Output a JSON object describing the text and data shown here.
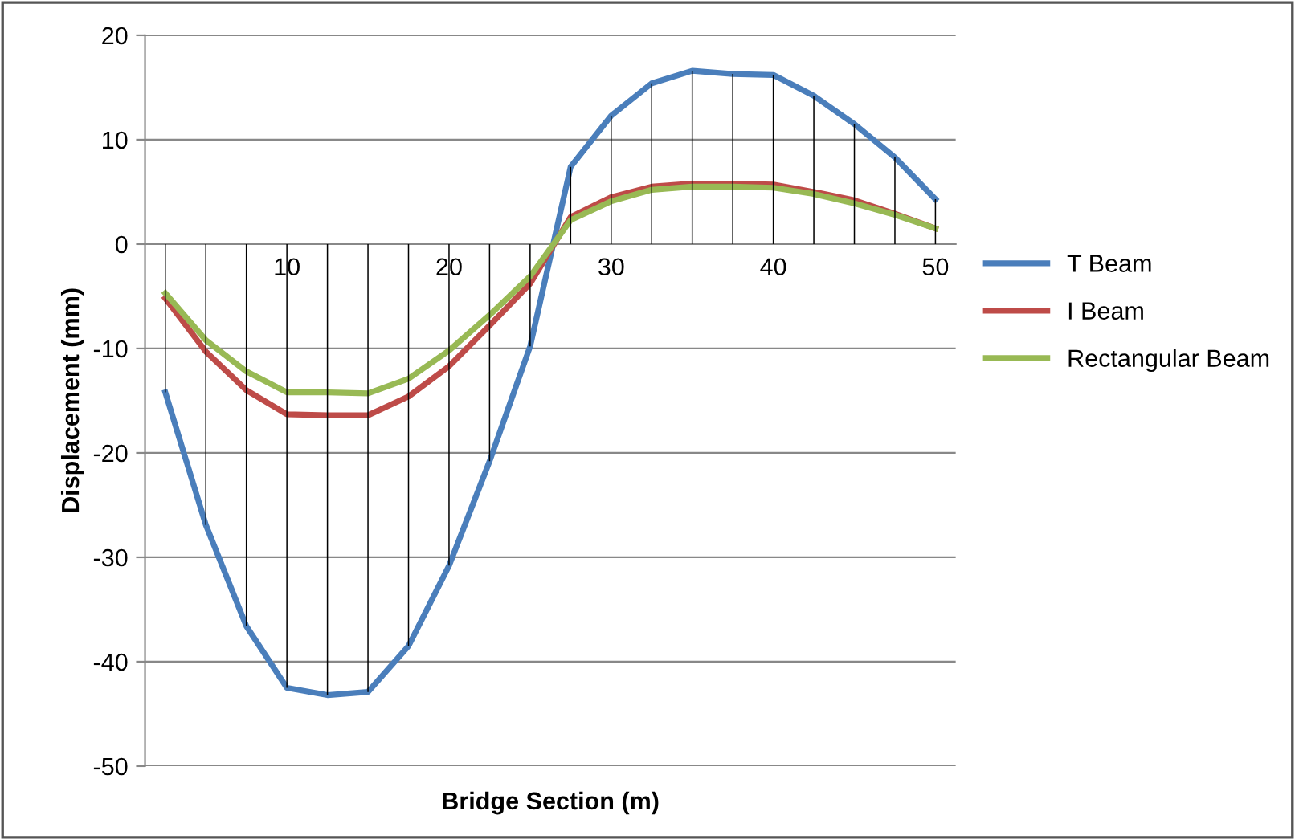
{
  "chart_data": {
    "type": "line",
    "xlabel": "Bridge Section (m)",
    "ylabel": "Displacement (mm)",
    "categories": [
      null,
      null,
      null,
      "10",
      null,
      null,
      null,
      "20",
      null,
      null,
      null,
      "30",
      null,
      null,
      null,
      "40",
      null,
      null,
      null,
      "50"
    ],
    "series": [
      {
        "type": "bar",
        "color": "#000000",
        "values": [
          -14.2,
          -26.9,
          -36.6,
          -42.5,
          -43.2,
          -42.9,
          -38.5,
          -30.8,
          -20.8,
          -9.8,
          7.4,
          12.3,
          15.4,
          16.6,
          16.3,
          16.2,
          14.2,
          11.5,
          8.3,
          4.3
        ]
      },
      {
        "name": "T Beam",
        "color": "#4a7ebb",
        "values": [
          -14.2,
          -26.9,
          -36.6,
          -42.5,
          -43.2,
          -42.9,
          -38.5,
          -30.8,
          -20.8,
          -9.8,
          7.4,
          12.3,
          15.4,
          16.6,
          16.3,
          16.2,
          14.2,
          11.5,
          8.3,
          4.3
        ]
      },
      {
        "name": "I Beam",
        "color": "#be4b48",
        "values": [
          -5.2,
          -10.3,
          -14.0,
          -16.3,
          -16.4,
          -16.4,
          -14.6,
          -11.7,
          -7.8,
          -3.8,
          2.6,
          4.5,
          5.5,
          5.8,
          5.8,
          5.7,
          5.0,
          4.2,
          2.9,
          1.5
        ]
      },
      {
        "name": "Rectangular Beam",
        "color": "#98b954",
        "values": [
          -4.7,
          -9.2,
          -12.2,
          -14.2,
          -14.2,
          -14.3,
          -12.9,
          -10.2,
          -6.8,
          -3.1,
          2.3,
          4.1,
          5.2,
          5.5,
          5.5,
          5.4,
          4.8,
          3.9,
          2.8,
          1.5
        ]
      }
    ],
    "ylim": [
      -50,
      20
    ],
    "yticks": [
      -50,
      -40,
      -30,
      -20,
      -10,
      0,
      10,
      20
    ],
    "grid": "y",
    "legend": "right",
    "marker": "none",
    "line_style": "solid"
  }
}
